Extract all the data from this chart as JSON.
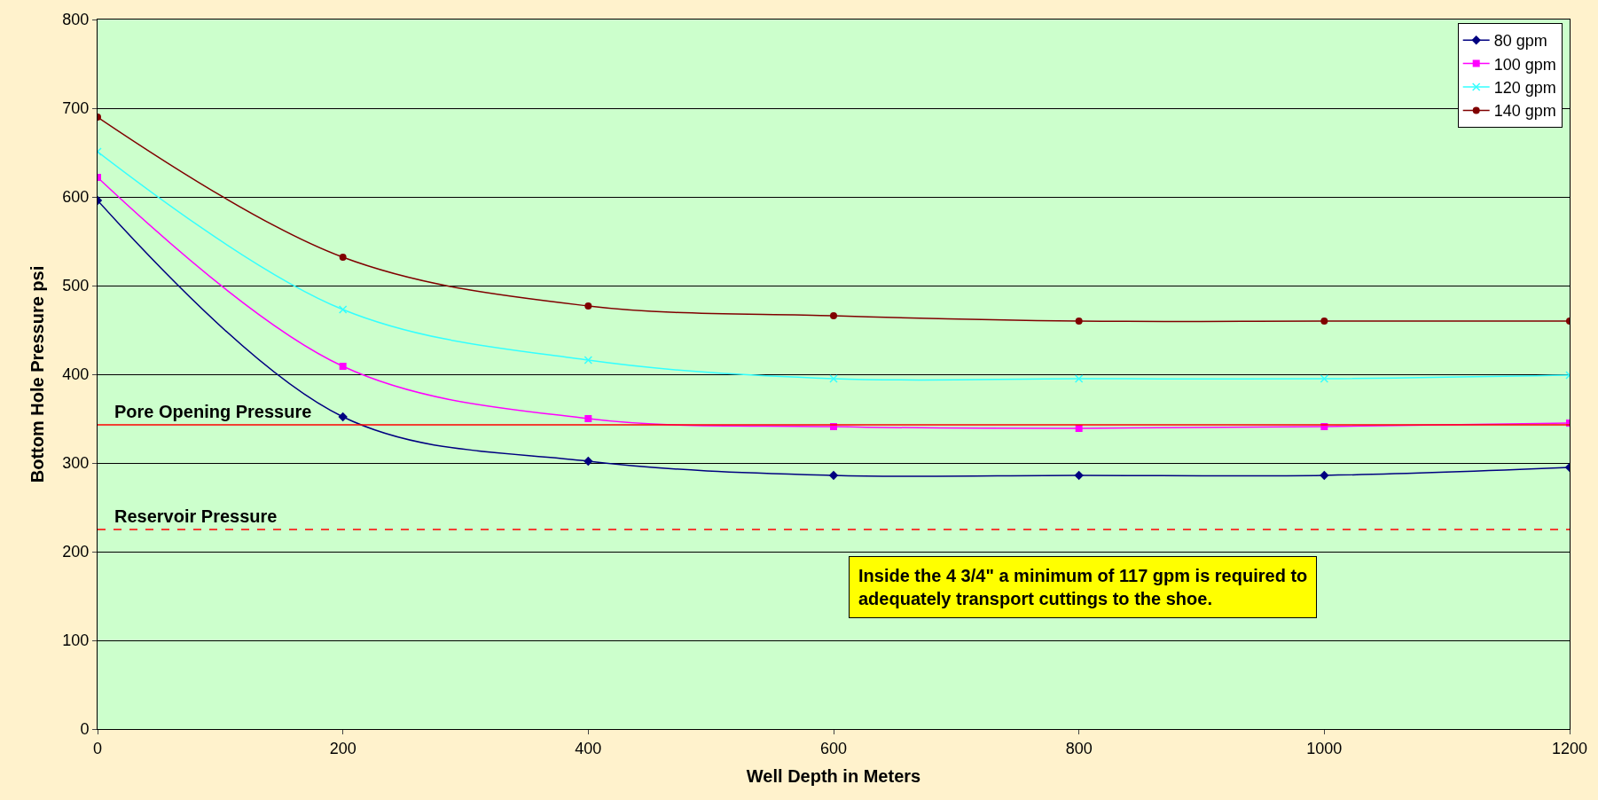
{
  "chart_data": {
    "type": "line",
    "xlabel": "Well Depth in Meters",
    "ylabel": "Bottom Hole Pressure psi",
    "x": [
      0,
      200,
      400,
      600,
      800,
      1000,
      1200
    ],
    "series": [
      {
        "name": "80 gpm",
        "color": "#000080",
        "marker": "diamond",
        "values": [
          596,
          352,
          302,
          286,
          286,
          286,
          295
        ]
      },
      {
        "name": "100 gpm",
        "color": "#ff00ff",
        "marker": "square",
        "values": [
          622,
          409,
          350,
          341,
          339,
          341,
          345
        ]
      },
      {
        "name": "120 gpm",
        "color": "#33ffff",
        "marker": "cross",
        "values": [
          651,
          473,
          416,
          395,
          395,
          395,
          399
        ]
      },
      {
        "name": "140 gpm",
        "color": "#800000",
        "marker": "circle",
        "values": [
          690,
          532,
          477,
          466,
          460,
          460,
          460
        ]
      }
    ],
    "xlim": [
      0,
      1200
    ],
    "xticks": [
      0,
      200,
      400,
      600,
      800,
      1000,
      1200
    ],
    "ylim": [
      0,
      800
    ],
    "yticks": [
      0,
      100,
      200,
      300,
      400,
      500,
      600,
      700,
      800
    ],
    "grid": "y",
    "legend": "top right",
    "ref_lines": [
      {
        "axis": "y",
        "value": 343,
        "label": "Pore Opening Pressure",
        "color": "#ff0000",
        "line_style": "solid"
      },
      {
        "axis": "y",
        "value": 225,
        "label": "Reservoir Pressure",
        "color": "#ff0000",
        "line_style": "dashed"
      }
    ],
    "annotations": [
      "Inside the 4 3/4\" a minimum of 117 gpm is required to adequately transport cuttings to the shoe."
    ]
  }
}
